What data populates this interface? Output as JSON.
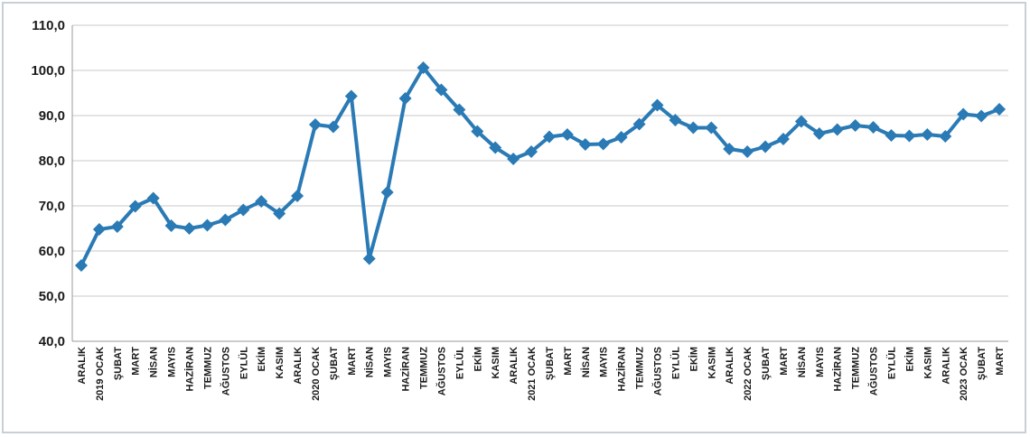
{
  "chart_data": {
    "type": "line",
    "title": "",
    "xlabel": "",
    "ylabel": "",
    "ylim": [
      40,
      110
    ],
    "yticks": [
      40,
      50,
      60,
      70,
      80,
      90,
      100,
      110
    ],
    "ytick_labels": [
      "40,0",
      "50,0",
      "60,0",
      "70,0",
      "80,0",
      "90,0",
      "100,0",
      "110,0"
    ],
    "grid": true,
    "legend": "none",
    "series_color": "#2a7ab5",
    "categories": [
      "ARALIK",
      "2019 OCAK",
      "ŞUBAT",
      "MART",
      "NİSAN",
      "MAYIS",
      "HAZİRAN",
      "TEMMUZ",
      "AĞUSTOS",
      "EYLÜL",
      "EKİM",
      "KASIM",
      "ARALIK",
      "2020 OCAK",
      "ŞUBAT",
      "MART",
      "NİSAN",
      "MAYIS",
      "HAZİRAN",
      "TEMMUZ",
      "AĞUSTOS",
      "EYLÜL",
      "EKİM",
      "KASIM",
      "ARALIK",
      "2021 OCAK",
      "ŞUBAT",
      "MART",
      "NİSAN",
      "MAYIS",
      "HAZİRAN",
      "TEMMUZ",
      "AĞUSTOS",
      "EYLÜL",
      "EKİM",
      "KASIM",
      "ARALIK",
      "2022 OCAK",
      "ŞUBAT",
      "MART",
      "NİSAN",
      "MAYIS",
      "HAZİRAN",
      "TEMMUZ",
      "AĞUSTOS",
      "EYLÜL",
      "EKİM",
      "KASIM",
      "ARALIK",
      "2023 OCAK",
      "ŞUBAT",
      "MART"
    ],
    "series": [
      {
        "values": [
          56.8,
          64.8,
          65.4,
          69.9,
          71.7,
          65.6,
          65.0,
          65.7,
          66.9,
          69.1,
          71.0,
          68.3,
          72.2,
          88.0,
          87.5,
          94.3,
          58.3,
          73.0,
          93.8,
          100.6,
          95.7,
          91.3,
          86.5,
          82.9,
          80.4,
          82.0,
          85.3,
          85.8,
          83.6,
          83.7,
          85.2,
          88.1,
          92.3,
          89.0,
          87.3,
          87.3,
          82.6,
          82.0,
          83.1,
          84.8,
          88.7,
          86.0,
          86.9,
          87.8,
          87.4,
          85.6,
          85.5,
          85.8,
          85.4,
          90.3,
          89.9,
          91.4
        ]
      }
    ]
  }
}
